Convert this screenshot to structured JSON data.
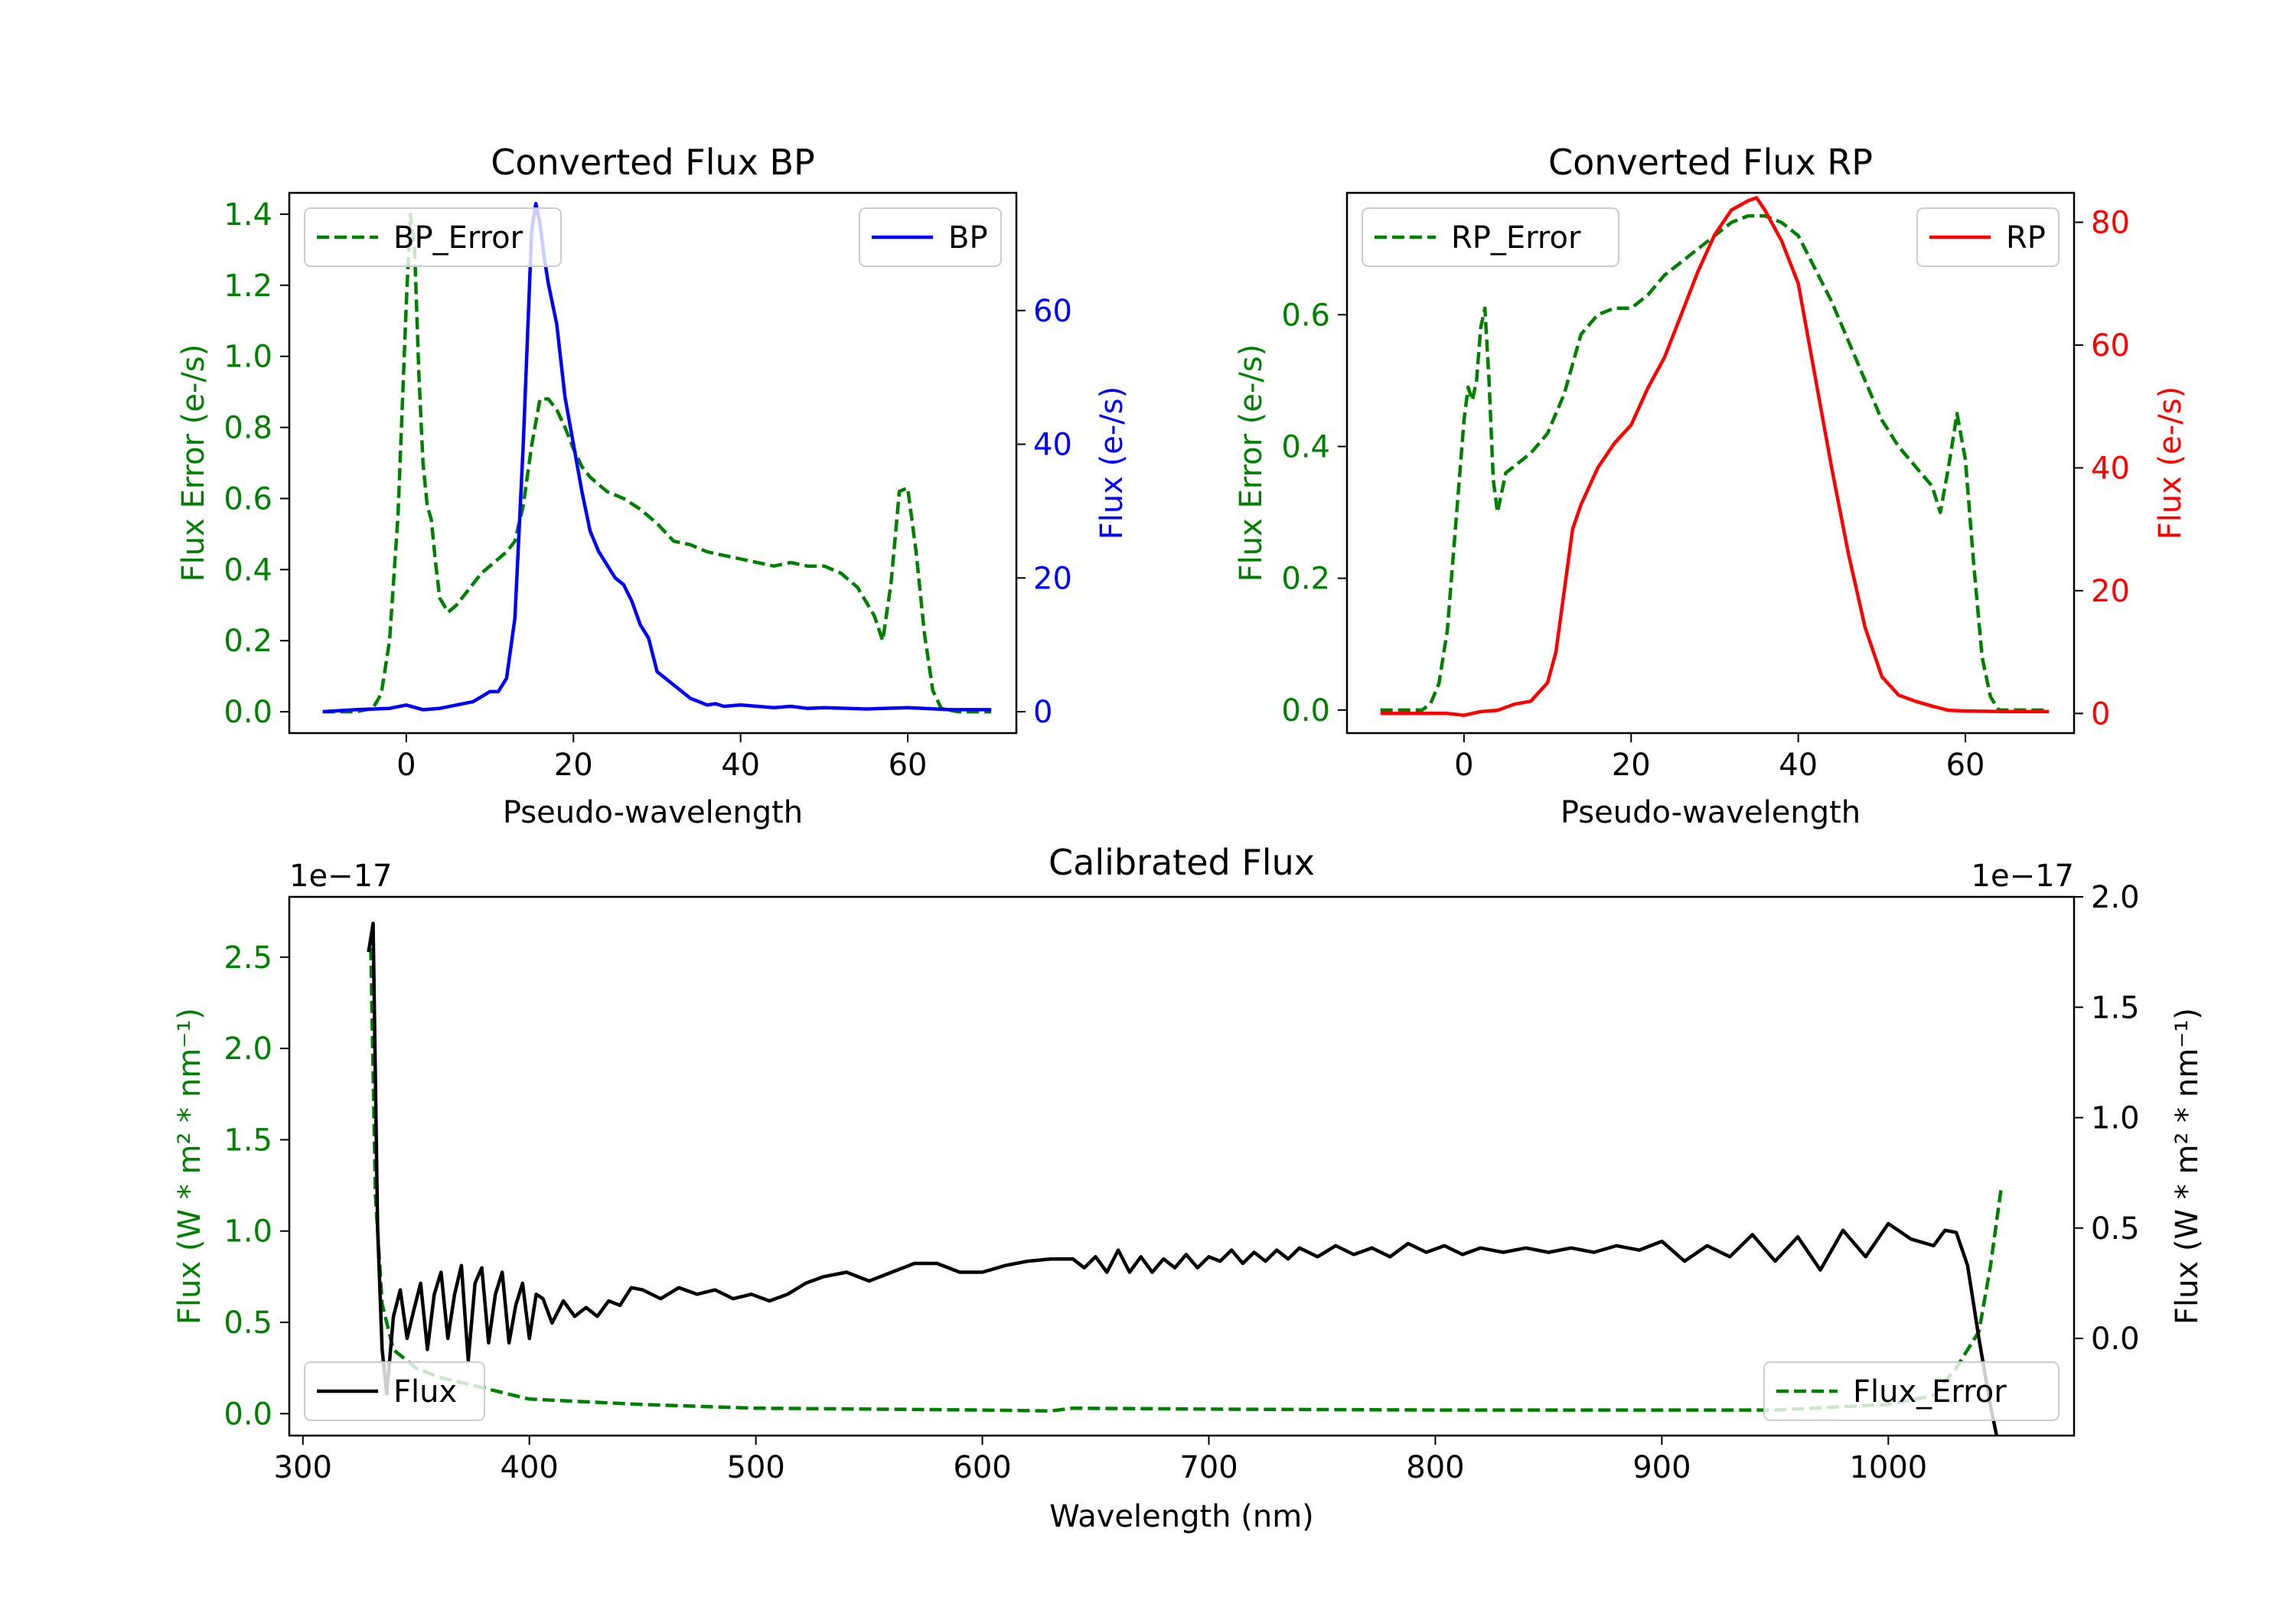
{
  "figure": {
    "colors": {
      "error": "#008000",
      "bp": "#0000ff",
      "rp": "#ff0000",
      "flux": "#000000",
      "axis": "#000000"
    }
  },
  "chart_data": [
    {
      "id": "bp",
      "type": "line",
      "title": "Converted Flux BP",
      "xlabel": "Pseudo-wavelength",
      "ylabel_left": "Flux Error (e-/s)",
      "ylabel_right": "Flux (e-/s)",
      "xlim": [
        -14,
        73
      ],
      "ylim_left": [
        -0.06,
        1.46
      ],
      "ylim_right": [
        -3.2,
        77.6
      ],
      "xticks": [
        0,
        20,
        40,
        60
      ],
      "xtick_labels": [
        "0",
        "20",
        "40",
        "60"
      ],
      "yticks_left": [
        0.0,
        0.2,
        0.4,
        0.6,
        0.8,
        1.0,
        1.2,
        1.4
      ],
      "ytick_labels_left": [
        "0.0",
        "0.2",
        "0.4",
        "0.6",
        "0.8",
        "1.0",
        "1.2",
        "1.4"
      ],
      "yticks_right": [
        0,
        20,
        40,
        60
      ],
      "ytick_labels_right": [
        "0",
        "20",
        "40",
        "60"
      ],
      "legend_left": {
        "label": "BP_Error",
        "placement": "upper left"
      },
      "legend_right": {
        "label": "BP",
        "placement": "upper right"
      },
      "series": [
        {
          "name": "BP_Error",
          "axis": "left",
          "style": "dashed",
          "color": "#008000",
          "x": [
            -10,
            -6,
            -4,
            -3,
            -2,
            -1,
            0,
            0.5,
            1,
            1.5,
            2,
            2.5,
            3,
            3.5,
            4,
            5,
            6,
            7,
            8,
            9,
            10,
            11,
            12,
            13,
            14,
            15,
            16,
            17,
            18,
            19,
            20,
            21,
            22,
            24,
            26,
            28,
            30,
            32,
            34,
            36,
            38,
            40,
            42,
            44,
            46,
            48,
            50,
            52,
            54,
            56,
            57,
            58,
            59,
            60,
            61,
            62,
            63,
            64,
            66,
            68,
            70
          ],
          "y": [
            0.0,
            0.0,
            0.01,
            0.05,
            0.2,
            0.55,
            1.15,
            1.4,
            1.3,
            0.95,
            0.7,
            0.58,
            0.54,
            0.42,
            0.32,
            0.28,
            0.3,
            0.33,
            0.36,
            0.39,
            0.41,
            0.43,
            0.45,
            0.48,
            0.58,
            0.75,
            0.88,
            0.88,
            0.85,
            0.8,
            0.74,
            0.69,
            0.66,
            0.62,
            0.6,
            0.57,
            0.53,
            0.48,
            0.47,
            0.45,
            0.44,
            0.43,
            0.42,
            0.41,
            0.42,
            0.41,
            0.41,
            0.39,
            0.35,
            0.27,
            0.2,
            0.36,
            0.62,
            0.63,
            0.45,
            0.22,
            0.06,
            0.01,
            0.0,
            0.0,
            0.0
          ]
        },
        {
          "name": "BP",
          "axis": "right",
          "style": "solid",
          "color": "#0000ff",
          "x": [
            -10,
            -6,
            -2,
            0,
            2,
            4,
            6,
            8,
            10,
            11,
            12,
            13,
            14,
            15,
            15.5,
            16,
            16.5,
            17,
            18,
            19,
            20,
            21,
            22,
            23,
            24,
            25,
            26,
            27,
            28,
            29,
            30,
            31,
            32,
            33,
            34,
            35,
            36,
            37,
            38,
            40,
            42,
            44,
            46,
            48,
            50,
            55,
            60,
            65,
            70
          ],
          "y": [
            0.0,
            0.3,
            0.5,
            1.0,
            0.3,
            0.5,
            1.0,
            1.5,
            3.0,
            3.0,
            5.0,
            14.0,
            40.0,
            72.0,
            76.0,
            73.0,
            68.0,
            64.0,
            58.0,
            47.0,
            40.0,
            33.0,
            27.0,
            24.0,
            22.0,
            20.0,
            19.0,
            16.5,
            13.0,
            11.0,
            6.0,
            5.0,
            4.0,
            3.0,
            2.0,
            1.5,
            1.0,
            1.2,
            0.8,
            1.0,
            0.8,
            0.6,
            0.8,
            0.5,
            0.6,
            0.4,
            0.6,
            0.3,
            0.3
          ]
        }
      ]
    },
    {
      "id": "rp",
      "type": "line",
      "title": "Converted Flux RP",
      "xlabel": "Pseudo-wavelength",
      "ylabel_left": "Flux Error (e-/s)",
      "ylabel_right": "Flux (e-/s)",
      "xlim": [
        -14,
        73
      ],
      "ylim_left": [
        -0.035,
        0.785
      ],
      "ylim_right": [
        -3.2,
        84.8
      ],
      "xticks": [
        0,
        20,
        40,
        60
      ],
      "xtick_labels": [
        "0",
        "20",
        "40",
        "60"
      ],
      "yticks_left": [
        0.0,
        0.2,
        0.4,
        0.6
      ],
      "ytick_labels_left": [
        "0.0",
        "0.2",
        "0.4",
        "0.6"
      ],
      "yticks_right": [
        0,
        20,
        40,
        60,
        80
      ],
      "ytick_labels_right": [
        "0",
        "20",
        "40",
        "60",
        "80"
      ],
      "legend_left": {
        "label": "RP_Error",
        "placement": "upper left"
      },
      "legend_right": {
        "label": "RP",
        "placement": "upper right"
      },
      "series": [
        {
          "name": "RP_Error",
          "axis": "left",
          "style": "dashed",
          "color": "#008000",
          "x": [
            -10,
            -5,
            -4,
            -3,
            -2,
            -1,
            0,
            0.5,
            1,
            1.5,
            2,
            2.5,
            3,
            3.5,
            4,
            5,
            6,
            8,
            10,
            12,
            14,
            16,
            18,
            20,
            22,
            24,
            26,
            28,
            30,
            32,
            34,
            36,
            38,
            40,
            42,
            44,
            46,
            48,
            50,
            52,
            54,
            56,
            57,
            58,
            59,
            60,
            61,
            62,
            63,
            64,
            66,
            68,
            70
          ],
          "y": [
            0.0,
            0.0,
            0.01,
            0.04,
            0.12,
            0.28,
            0.44,
            0.49,
            0.47,
            0.5,
            0.58,
            0.61,
            0.5,
            0.35,
            0.3,
            0.36,
            0.37,
            0.39,
            0.42,
            0.48,
            0.57,
            0.6,
            0.61,
            0.61,
            0.63,
            0.66,
            0.68,
            0.7,
            0.72,
            0.74,
            0.75,
            0.75,
            0.74,
            0.72,
            0.67,
            0.62,
            0.56,
            0.5,
            0.44,
            0.4,
            0.37,
            0.34,
            0.3,
            0.37,
            0.45,
            0.38,
            0.22,
            0.08,
            0.02,
            0.0,
            0.0,
            0.0,
            0.0
          ]
        },
        {
          "name": "RP",
          "axis": "right",
          "style": "solid",
          "color": "#ff0000",
          "x": [
            -10,
            -6,
            -2,
            0,
            2,
            4,
            6,
            8,
            10,
            11,
            12,
            13,
            14,
            15,
            16,
            18,
            20,
            22,
            24,
            26,
            28,
            30,
            32,
            34,
            35,
            36,
            38,
            40,
            42,
            44,
            46,
            48,
            50,
            52,
            54,
            56,
            58,
            60,
            65,
            70
          ],
          "y": [
            0.0,
            0.0,
            0.0,
            -0.3,
            0.3,
            0.5,
            1.5,
            2.0,
            5.0,
            10.0,
            20.0,
            30.0,
            34.0,
            37.0,
            40.0,
            44.0,
            47.0,
            53.0,
            58.0,
            65.0,
            72.0,
            78.0,
            82.0,
            83.5,
            84.0,
            82.0,
            77.0,
            70.0,
            55.0,
            40.0,
            26.0,
            14.0,
            6.0,
            3.0,
            2.0,
            1.2,
            0.5,
            0.4,
            0.3,
            0.3
          ]
        }
      ]
    },
    {
      "id": "cal",
      "type": "line",
      "title": "Calibrated Flux",
      "xlabel": "Wavelength (nm)",
      "ylabel_left": "Flux (W * m² * nm⁻¹)",
      "ylabel_right": "Flux (W * m² * nm⁻¹)",
      "offset_left": "1e−17",
      "offset_right": "1e−17",
      "xlim": [
        294,
        1082
      ],
      "ylim_left": [
        -0.12,
        2.83
      ],
      "ylim_right": [
        -0.44,
        2.0
      ],
      "xticks": [
        300,
        400,
        500,
        600,
        700,
        800,
        900,
        1000
      ],
      "xtick_labels": [
        "300",
        "400",
        "500",
        "600",
        "700",
        "800",
        "900",
        "1000"
      ],
      "yticks_left": [
        0.0,
        0.5,
        1.0,
        1.5,
        2.0,
        2.5
      ],
      "ytick_labels_left": [
        "0.0",
        "0.5",
        "1.0",
        "1.5",
        "2.0",
        "2.5"
      ],
      "yticks_right": [
        0.0,
        0.5,
        1.0,
        1.5,
        2.0
      ],
      "ytick_labels_right": [
        "0.0",
        "0.5",
        "1.0",
        "1.5",
        "2.0"
      ],
      "legend_left": {
        "label": "Flux",
        "placement": "lower left"
      },
      "legend_right": {
        "label": "Flux_Error",
        "placement": "lower right"
      },
      "series": [
        {
          "name": "Flux_Error",
          "axis": "left",
          "style": "dashed",
          "color": "#008000",
          "x": [
            330,
            332,
            335,
            340,
            350,
            360,
            380,
            400,
            450,
            500,
            550,
            600,
            630,
            640,
            700,
            800,
            900,
            950,
            1000,
            1020,
            1030,
            1040,
            1045,
            1050
          ],
          "y": [
            2.55,
            1.2,
            0.6,
            0.35,
            0.25,
            0.2,
            0.14,
            0.08,
            0.05,
            0.03,
            0.025,
            0.02,
            0.015,
            0.03,
            0.025,
            0.02,
            0.02,
            0.02,
            0.05,
            0.1,
            0.25,
            0.45,
            0.8,
            1.25
          ]
        },
        {
          "name": "Flux",
          "axis": "right",
          "style": "solid",
          "color": "#000000",
          "x": [
            329,
            331,
            333,
            335,
            337,
            340,
            343,
            346,
            349,
            352,
            355,
            358,
            361,
            364,
            367,
            370,
            373,
            376,
            379,
            382,
            385,
            388,
            391,
            394,
            397,
            400,
            403,
            406,
            410,
            415,
            420,
            425,
            430,
            435,
            440,
            445,
            450,
            458,
            466,
            474,
            482,
            490,
            498,
            506,
            514,
            522,
            530,
            540,
            550,
            560,
            570,
            580,
            590,
            600,
            610,
            620,
            630,
            640,
            645,
            650,
            655,
            660,
            665,
            670,
            675,
            680,
            685,
            690,
            695,
            700,
            705,
            710,
            715,
            720,
            725,
            730,
            735,
            740,
            748,
            756,
            764,
            772,
            780,
            788,
            796,
            804,
            812,
            820,
            830,
            840,
            850,
            860,
            870,
            880,
            890,
            900,
            910,
            920,
            930,
            940,
            950,
            960,
            970,
            980,
            990,
            1000,
            1010,
            1020,
            1025,
            1030,
            1035,
            1040,
            1045,
            1048
          ],
          "y": [
            1.75,
            1.88,
            0.5,
            -0.05,
            -0.25,
            0.1,
            0.22,
            0.0,
            0.13,
            0.25,
            -0.05,
            0.2,
            0.3,
            0.0,
            0.2,
            0.33,
            -0.1,
            0.25,
            0.32,
            -0.02,
            0.2,
            0.3,
            -0.02,
            0.15,
            0.25,
            0.0,
            0.2,
            0.18,
            0.07,
            0.17,
            0.1,
            0.14,
            0.1,
            0.17,
            0.15,
            0.23,
            0.22,
            0.18,
            0.23,
            0.2,
            0.22,
            0.18,
            0.2,
            0.17,
            0.2,
            0.25,
            0.28,
            0.3,
            0.26,
            0.3,
            0.34,
            0.34,
            0.3,
            0.3,
            0.33,
            0.35,
            0.36,
            0.36,
            0.32,
            0.37,
            0.3,
            0.4,
            0.3,
            0.37,
            0.3,
            0.36,
            0.32,
            0.38,
            0.32,
            0.37,
            0.35,
            0.4,
            0.34,
            0.39,
            0.35,
            0.4,
            0.36,
            0.41,
            0.37,
            0.42,
            0.38,
            0.41,
            0.37,
            0.43,
            0.39,
            0.42,
            0.38,
            0.41,
            0.39,
            0.41,
            0.39,
            0.41,
            0.39,
            0.42,
            0.4,
            0.44,
            0.35,
            0.42,
            0.37,
            0.47,
            0.35,
            0.46,
            0.31,
            0.49,
            0.37,
            0.52,
            0.45,
            0.42,
            0.49,
            0.48,
            0.33,
            0.0,
            -0.3,
            -0.45
          ]
        }
      ]
    }
  ]
}
